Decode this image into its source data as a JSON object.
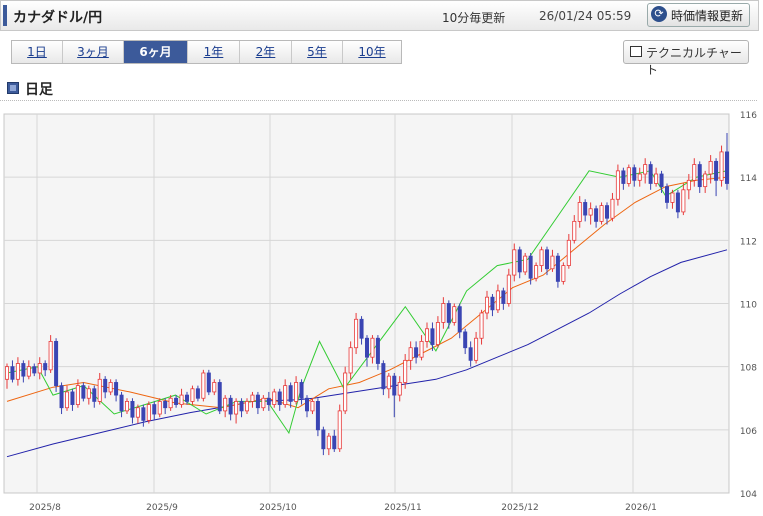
{
  "header": {
    "pair": "カナダドル/円",
    "update_freq": "10分毎更新",
    "timestamp": "26/01/24 05:59",
    "refresh_label": "時価情報更新"
  },
  "periods": [
    {
      "label": "1日",
      "active": false
    },
    {
      "label": "3ヶ月",
      "active": false
    },
    {
      "label": "6ヶ月",
      "active": true
    },
    {
      "label": "1年",
      "active": false
    },
    {
      "label": "2年",
      "active": false
    },
    {
      "label": "5年",
      "active": false
    },
    {
      "label": "10年",
      "active": false
    }
  ],
  "technical_chart_label": "テクニカルチャート",
  "section_title": "日足",
  "colors": {
    "up": "#e83a3a",
    "down": "#3a45b3",
    "ma_short": "#33cc33",
    "ma_mid": "#ee6611",
    "ma_long": "#2222aa",
    "accent": "#3c5a9a"
  },
  "chart_data": {
    "type": "candlestick",
    "ylim": [
      104,
      116
    ],
    "yticks": [
      "104",
      "106",
      "108",
      "110",
      "112",
      "114",
      "116"
    ],
    "xticks": [
      "2025/8",
      "2025/9",
      "2025/10",
      "2025/11",
      "2025/12",
      "2026/1"
    ],
    "grid": true,
    "series": [
      {
        "type": "ma",
        "color": "#2222aa",
        "points": [
          [
            0,
            105.15
          ],
          [
            15,
            105.55
          ],
          [
            30,
            105.9
          ],
          [
            45,
            106.25
          ],
          [
            60,
            106.55
          ],
          [
            75,
            106.8
          ],
          [
            80,
            106.9
          ],
          [
            95,
            106.95
          ],
          [
            100,
            107.0
          ],
          [
            110,
            107.15
          ],
          [
            120,
            107.3
          ],
          [
            130,
            107.45
          ],
          [
            140,
            107.6
          ],
          [
            150,
            107.9
          ],
          [
            160,
            108.3
          ],
          [
            170,
            108.7
          ],
          [
            180,
            109.2
          ],
          [
            190,
            109.7
          ],
          [
            200,
            110.3
          ],
          [
            210,
            110.85
          ],
          [
            220,
            111.3
          ],
          [
            235,
            111.7
          ]
        ]
      },
      {
        "type": "ma",
        "color": "#ee6611",
        "points": [
          [
            0,
            106.9
          ],
          [
            15,
            107.35
          ],
          [
            25,
            107.5
          ],
          [
            40,
            107.2
          ],
          [
            55,
            106.85
          ],
          [
            70,
            106.7
          ],
          [
            85,
            107.0
          ],
          [
            95,
            106.7
          ],
          [
            105,
            107.3
          ],
          [
            115,
            107.5
          ],
          [
            125,
            107.9
          ],
          [
            135,
            108.4
          ],
          [
            145,
            108.9
          ],
          [
            155,
            109.7
          ],
          [
            165,
            110.5
          ],
          [
            175,
            110.9
          ],
          [
            185,
            111.7
          ],
          [
            195,
            112.5
          ],
          [
            205,
            113.2
          ],
          [
            215,
            113.7
          ],
          [
            225,
            113.9
          ],
          [
            235,
            114.0
          ]
        ]
      },
      {
        "type": "ma",
        "color": "#33cc33",
        "points": [
          [
            0,
            107.8
          ],
          [
            10,
            108.0
          ],
          [
            15,
            107.1
          ],
          [
            25,
            107.4
          ],
          [
            35,
            106.5
          ],
          [
            45,
            106.8
          ],
          [
            55,
            107.1
          ],
          [
            65,
            106.5
          ],
          [
            75,
            106.9
          ],
          [
            85,
            106.9
          ],
          [
            92,
            105.9
          ],
          [
            96,
            107.3
          ],
          [
            102,
            108.8
          ],
          [
            110,
            107.3
          ],
          [
            120,
            108.6
          ],
          [
            130,
            109.9
          ],
          [
            140,
            108.5
          ],
          [
            150,
            110.4
          ],
          [
            160,
            111.2
          ],
          [
            170,
            111.4
          ],
          [
            180,
            112.8
          ],
          [
            190,
            114.2
          ],
          [
            200,
            114.0
          ],
          [
            210,
            114.2
          ],
          [
            215,
            113.4
          ],
          [
            225,
            114.0
          ],
          [
            235,
            114.2
          ]
        ]
      }
    ],
    "candles": [
      {
        "o": 107.6,
        "c": 108.0,
        "h": 108.1,
        "l": 107.3
      },
      {
        "o": 108.0,
        "c": 107.6,
        "h": 108.2,
        "l": 107.5
      },
      {
        "o": 107.6,
        "c": 108.1,
        "h": 108.3,
        "l": 107.4
      },
      {
        "o": 108.1,
        "c": 107.7,
        "h": 108.2,
        "l": 107.5
      },
      {
        "o": 107.7,
        "c": 108.0,
        "h": 108.2,
        "l": 107.6
      },
      {
        "o": 108.0,
        "c": 107.8,
        "h": 108.1,
        "l": 107.7
      },
      {
        "o": 107.8,
        "c": 108.1,
        "h": 108.3,
        "l": 107.6
      },
      {
        "o": 108.1,
        "c": 107.9,
        "h": 108.2,
        "l": 107.7
      },
      {
        "o": 107.9,
        "c": 108.8,
        "h": 109.0,
        "l": 107.8
      },
      {
        "o": 108.8,
        "c": 107.4,
        "h": 108.9,
        "l": 107.2
      },
      {
        "o": 107.4,
        "c": 106.7,
        "h": 107.5,
        "l": 106.5
      },
      {
        "o": 106.7,
        "c": 107.2,
        "h": 107.4,
        "l": 106.6
      },
      {
        "o": 107.2,
        "c": 106.8,
        "h": 107.3,
        "l": 106.6
      },
      {
        "o": 106.8,
        "c": 107.4,
        "h": 107.6,
        "l": 106.7
      },
      {
        "o": 107.4,
        "c": 107.0,
        "h": 107.5,
        "l": 106.9
      },
      {
        "o": 107.0,
        "c": 107.3,
        "h": 107.4,
        "l": 106.8
      },
      {
        "o": 107.3,
        "c": 106.9,
        "h": 107.4,
        "l": 106.7
      },
      {
        "o": 106.9,
        "c": 107.6,
        "h": 107.8,
        "l": 106.8
      },
      {
        "o": 107.6,
        "c": 107.2,
        "h": 107.7,
        "l": 107.0
      },
      {
        "o": 107.2,
        "c": 107.5,
        "h": 107.6,
        "l": 107.1
      },
      {
        "o": 107.5,
        "c": 107.1,
        "h": 107.6,
        "l": 106.9
      },
      {
        "o": 107.1,
        "c": 106.6,
        "h": 107.2,
        "l": 106.4
      },
      {
        "o": 106.6,
        "c": 106.9,
        "h": 107.0,
        "l": 106.5
      },
      {
        "o": 106.9,
        "c": 106.4,
        "h": 107.0,
        "l": 106.2
      },
      {
        "o": 106.4,
        "c": 106.7,
        "h": 106.8,
        "l": 106.2
      },
      {
        "o": 106.7,
        "c": 106.3,
        "h": 106.8,
        "l": 106.1
      },
      {
        "o": 106.3,
        "c": 106.8,
        "h": 106.9,
        "l": 106.2
      },
      {
        "o": 106.8,
        "c": 106.5,
        "h": 106.9,
        "l": 106.3
      },
      {
        "o": 106.5,
        "c": 106.9,
        "h": 107.0,
        "l": 106.4
      },
      {
        "o": 106.9,
        "c": 106.7,
        "h": 107.0,
        "l": 106.5
      },
      {
        "o": 106.7,
        "c": 107.0,
        "h": 107.1,
        "l": 106.6
      },
      {
        "o": 107.0,
        "c": 106.8,
        "h": 107.1,
        "l": 106.7
      },
      {
        "o": 106.8,
        "c": 107.1,
        "h": 107.3,
        "l": 106.7
      },
      {
        "o": 107.1,
        "c": 106.9,
        "h": 107.2,
        "l": 106.8
      },
      {
        "o": 106.9,
        "c": 107.3,
        "h": 107.4,
        "l": 106.8
      },
      {
        "o": 107.3,
        "c": 107.0,
        "h": 107.4,
        "l": 106.9
      },
      {
        "o": 107.0,
        "c": 107.8,
        "h": 107.9,
        "l": 106.9
      },
      {
        "o": 107.8,
        "c": 107.2,
        "h": 107.9,
        "l": 107.1
      },
      {
        "o": 107.2,
        "c": 107.5,
        "h": 107.6,
        "l": 107.1
      },
      {
        "o": 107.5,
        "c": 106.6,
        "h": 107.6,
        "l": 106.5
      },
      {
        "o": 106.6,
        "c": 107.0,
        "h": 107.1,
        "l": 106.4
      },
      {
        "o": 107.0,
        "c": 106.5,
        "h": 107.1,
        "l": 106.3
      },
      {
        "o": 106.5,
        "c": 106.9,
        "h": 107.0,
        "l": 106.2
      },
      {
        "o": 106.9,
        "c": 106.6,
        "h": 107.0,
        "l": 106.4
      },
      {
        "o": 106.6,
        "c": 106.9,
        "h": 107.0,
        "l": 106.5
      },
      {
        "o": 106.9,
        "c": 107.1,
        "h": 107.2,
        "l": 106.7
      },
      {
        "o": 107.1,
        "c": 106.7,
        "h": 107.2,
        "l": 106.5
      },
      {
        "o": 106.7,
        "c": 107.0,
        "h": 107.1,
        "l": 106.6
      },
      {
        "o": 107.0,
        "c": 106.8,
        "h": 107.2,
        "l": 106.6
      },
      {
        "o": 106.8,
        "c": 107.2,
        "h": 107.3,
        "l": 106.7
      },
      {
        "o": 107.2,
        "c": 106.8,
        "h": 107.3,
        "l": 106.6
      },
      {
        "o": 106.8,
        "c": 107.4,
        "h": 107.6,
        "l": 106.7
      },
      {
        "o": 107.4,
        "c": 106.9,
        "h": 107.5,
        "l": 106.7
      },
      {
        "o": 106.9,
        "c": 107.5,
        "h": 107.7,
        "l": 106.8
      },
      {
        "o": 107.5,
        "c": 107.0,
        "h": 107.6,
        "l": 106.8
      },
      {
        "o": 107.0,
        "c": 106.6,
        "h": 107.1,
        "l": 106.4
      },
      {
        "o": 106.6,
        "c": 106.9,
        "h": 107.0,
        "l": 106.5
      },
      {
        "o": 106.9,
        "c": 106.0,
        "h": 107.0,
        "l": 105.8
      },
      {
        "o": 106.0,
        "c": 105.4,
        "h": 106.1,
        "l": 105.2
      },
      {
        "o": 105.4,
        "c": 105.8,
        "h": 105.9,
        "l": 105.2
      },
      {
        "o": 105.8,
        "c": 105.4,
        "h": 106.0,
        "l": 105.3
      },
      {
        "o": 105.4,
        "c": 106.6,
        "h": 106.8,
        "l": 105.3
      },
      {
        "o": 106.6,
        "c": 107.8,
        "h": 108.0,
        "l": 106.5
      },
      {
        "o": 107.8,
        "c": 108.6,
        "h": 108.8,
        "l": 107.6
      },
      {
        "o": 108.6,
        "c": 109.5,
        "h": 109.7,
        "l": 108.4
      },
      {
        "o": 109.5,
        "c": 108.9,
        "h": 109.6,
        "l": 108.7
      },
      {
        "o": 108.9,
        "c": 108.3,
        "h": 109.0,
        "l": 108.0
      },
      {
        "o": 108.3,
        "c": 108.9,
        "h": 109.0,
        "l": 108.1
      },
      {
        "o": 108.9,
        "c": 108.1,
        "h": 109.0,
        "l": 107.9
      },
      {
        "o": 108.1,
        "c": 107.3,
        "h": 108.2,
        "l": 107.1
      },
      {
        "o": 107.3,
        "c": 107.7,
        "h": 107.8,
        "l": 107.0
      },
      {
        "o": 107.7,
        "c": 107.1,
        "h": 107.8,
        "l": 106.4
      },
      {
        "o": 107.1,
        "c": 107.5,
        "h": 107.7,
        "l": 106.9
      },
      {
        "o": 107.5,
        "c": 108.2,
        "h": 108.4,
        "l": 107.3
      },
      {
        "o": 108.2,
        "c": 108.6,
        "h": 108.8,
        "l": 107.9
      },
      {
        "o": 108.6,
        "c": 108.3,
        "h": 108.8,
        "l": 108.1
      },
      {
        "o": 108.3,
        "c": 108.8,
        "h": 109.0,
        "l": 108.2
      },
      {
        "o": 108.8,
        "c": 109.2,
        "h": 109.4,
        "l": 108.6
      },
      {
        "o": 109.2,
        "c": 108.7,
        "h": 109.4,
        "l": 108.5
      },
      {
        "o": 108.7,
        "c": 109.4,
        "h": 109.6,
        "l": 108.6
      },
      {
        "o": 109.4,
        "c": 110.0,
        "h": 110.2,
        "l": 109.2
      },
      {
        "o": 110.0,
        "c": 109.4,
        "h": 110.1,
        "l": 109.2
      },
      {
        "o": 109.4,
        "c": 109.9,
        "h": 110.0,
        "l": 109.3
      },
      {
        "o": 109.9,
        "c": 109.1,
        "h": 110.0,
        "l": 108.9
      },
      {
        "o": 109.1,
        "c": 108.6,
        "h": 109.2,
        "l": 108.4
      },
      {
        "o": 108.6,
        "c": 108.2,
        "h": 108.8,
        "l": 108.0
      },
      {
        "o": 108.2,
        "c": 108.9,
        "h": 109.1,
        "l": 108.1
      },
      {
        "o": 108.9,
        "c": 109.7,
        "h": 109.8,
        "l": 108.7
      },
      {
        "o": 109.7,
        "c": 110.2,
        "h": 110.4,
        "l": 109.5
      },
      {
        "o": 110.2,
        "c": 109.8,
        "h": 110.3,
        "l": 109.6
      },
      {
        "o": 109.8,
        "c": 110.4,
        "h": 110.6,
        "l": 109.7
      },
      {
        "o": 110.4,
        "c": 110.0,
        "h": 110.5,
        "l": 109.8
      },
      {
        "o": 110.0,
        "c": 110.9,
        "h": 111.1,
        "l": 109.9
      },
      {
        "o": 110.9,
        "c": 111.7,
        "h": 111.9,
        "l": 110.7
      },
      {
        "o": 111.7,
        "c": 111.0,
        "h": 111.8,
        "l": 110.8
      },
      {
        "o": 111.0,
        "c": 111.5,
        "h": 111.6,
        "l": 110.9
      },
      {
        "o": 111.5,
        "c": 110.8,
        "h": 111.6,
        "l": 110.6
      },
      {
        "o": 110.8,
        "c": 111.2,
        "h": 111.3,
        "l": 110.7
      },
      {
        "o": 111.2,
        "c": 111.7,
        "h": 111.8,
        "l": 111.0
      },
      {
        "o": 111.7,
        "c": 111.1,
        "h": 111.8,
        "l": 110.9
      },
      {
        "o": 111.1,
        "c": 111.5,
        "h": 111.7,
        "l": 111.0
      },
      {
        "o": 111.5,
        "c": 110.7,
        "h": 111.6,
        "l": 110.5
      },
      {
        "o": 110.7,
        "c": 111.2,
        "h": 111.3,
        "l": 110.6
      },
      {
        "o": 111.2,
        "c": 112.0,
        "h": 112.2,
        "l": 111.1
      },
      {
        "o": 112.0,
        "c": 112.6,
        "h": 112.8,
        "l": 111.9
      },
      {
        "o": 112.6,
        "c": 113.2,
        "h": 113.4,
        "l": 112.4
      },
      {
        "o": 113.2,
        "c": 112.8,
        "h": 113.3,
        "l": 112.6
      },
      {
        "o": 112.8,
        "c": 113.0,
        "h": 113.2,
        "l": 112.5
      },
      {
        "o": 113.0,
        "c": 112.6,
        "h": 113.1,
        "l": 112.4
      },
      {
        "o": 112.6,
        "c": 113.1,
        "h": 113.2,
        "l": 112.5
      },
      {
        "o": 113.1,
        "c": 112.7,
        "h": 113.2,
        "l": 112.5
      },
      {
        "o": 112.7,
        "c": 113.3,
        "h": 113.5,
        "l": 112.6
      },
      {
        "o": 113.3,
        "c": 114.2,
        "h": 114.4,
        "l": 113.1
      },
      {
        "o": 114.2,
        "c": 113.8,
        "h": 114.3,
        "l": 113.6
      },
      {
        "o": 113.8,
        "c": 114.3,
        "h": 114.4,
        "l": 113.7
      },
      {
        "o": 114.3,
        "c": 113.9,
        "h": 114.4,
        "l": 113.7
      },
      {
        "o": 113.9,
        "c": 114.1,
        "h": 114.3,
        "l": 113.7
      },
      {
        "o": 114.1,
        "c": 114.4,
        "h": 114.6,
        "l": 113.8
      },
      {
        "o": 114.4,
        "c": 113.8,
        "h": 114.5,
        "l": 113.6
      },
      {
        "o": 113.8,
        "c": 114.1,
        "h": 114.3,
        "l": 113.7
      },
      {
        "o": 114.1,
        "c": 113.7,
        "h": 114.2,
        "l": 113.5
      },
      {
        "o": 113.7,
        "c": 113.2,
        "h": 113.8,
        "l": 113.0
      },
      {
        "o": 113.2,
        "c": 113.5,
        "h": 113.6,
        "l": 113.0
      },
      {
        "o": 113.5,
        "c": 112.9,
        "h": 113.6,
        "l": 112.7
      },
      {
        "o": 112.9,
        "c": 113.6,
        "h": 113.8,
        "l": 112.8
      },
      {
        "o": 113.6,
        "c": 113.9,
        "h": 114.1,
        "l": 113.3
      },
      {
        "o": 113.9,
        "c": 114.4,
        "h": 114.6,
        "l": 113.7
      },
      {
        "o": 114.4,
        "c": 113.7,
        "h": 114.5,
        "l": 113.5
      },
      {
        "o": 113.7,
        "c": 114.1,
        "h": 114.2,
        "l": 113.5
      },
      {
        "o": 114.1,
        "c": 114.5,
        "h": 114.7,
        "l": 113.8
      },
      {
        "o": 114.5,
        "c": 113.9,
        "h": 114.6,
        "l": 113.4
      },
      {
        "o": 113.9,
        "c": 114.8,
        "h": 115.0,
        "l": 113.7
      },
      {
        "o": 114.8,
        "c": 113.8,
        "h": 115.4,
        "l": 113.6
      }
    ]
  }
}
